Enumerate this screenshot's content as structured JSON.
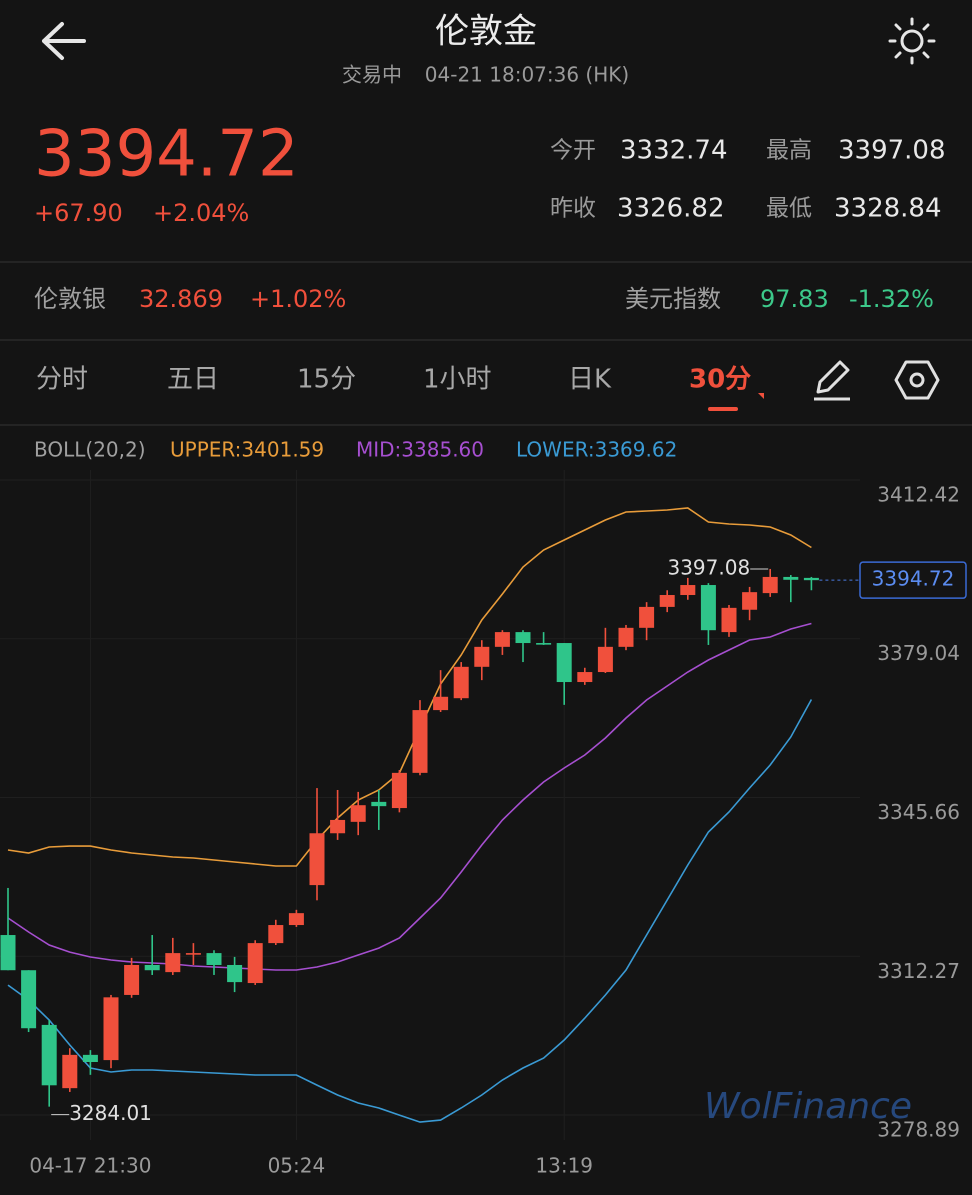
{
  "header": {
    "title": "伦敦金",
    "status": "交易中",
    "time": "04-21 18:07:36 (HK)"
  },
  "quote": {
    "price": "3394.72",
    "change": "+67.90",
    "change_pct": "+2.04%",
    "stats": [
      {
        "label": "今开",
        "value": "3332.74"
      },
      {
        "label": "最高",
        "value": "3397.08"
      },
      {
        "label": "昨收",
        "value": "3326.82"
      },
      {
        "label": "最低",
        "value": "3328.84"
      }
    ]
  },
  "related": [
    {
      "name": "伦敦银",
      "price": "32.869",
      "change": "+1.02%"
    },
    {
      "name": "美元指数",
      "price": "97.83",
      "change": "-1.32%"
    }
  ],
  "tabs": [
    "分时",
    "五日",
    "15分",
    "1小时",
    "日K",
    "30分"
  ],
  "active_tab": 5,
  "watermark": "WolFinance",
  "chart_data": {
    "type": "candlestick",
    "indicator": "BOLL(20,2)",
    "up_color": "#f0503c",
    "down_color": "#2fc58a",
    "categories": [
      null,
      null,
      null,
      null,
      "04-17 21:30",
      null,
      null,
      null,
      null,
      null,
      null,
      null,
      null,
      null,
      "05:24",
      null,
      null,
      null,
      null,
      null,
      null,
      null,
      null,
      null,
      null,
      null,
      null,
      "13:19",
      null,
      null,
      null,
      null,
      null,
      null,
      null,
      null,
      null,
      null,
      null,
      null
    ],
    "open": [
      3320.1,
      3312.7,
      3301.2,
      3287.9,
      3294.9,
      3293.8,
      3307.5,
      3313.8,
      3312.3,
      3316.0,
      3316.3,
      3313.8,
      3310.0,
      3318.4,
      3322.2,
      3330.6,
      3341.5,
      3343.9,
      3348.1,
      3346.8,
      3354.2,
      3367.4,
      3369.9,
      3376.5,
      3380.7,
      3383.8,
      3381.5,
      3381.5,
      3373.3,
      3375.4,
      3380.7,
      3384.7,
      3389.1,
      3391.6,
      3393.7,
      3383.8,
      3388.5,
      3392.0,
      3395.4,
      3395.2
    ],
    "high": [
      3330.0,
      3312.7,
      3302.2,
      3296.3,
      3295.9,
      3307.5,
      3315.3,
      3320.1,
      3319.5,
      3318.4,
      3316.9,
      3315.5,
      3319.0,
      3323.3,
      3325.4,
      3351.0,
      3350.6,
      3350.2,
      3350.6,
      3354.8,
      3369.5,
      3375.8,
      3377.5,
      3382.1,
      3384.2,
      3384.2,
      3383.8,
      3381.5,
      3376.3,
      3384.7,
      3385.3,
      3390.1,
      3392.6,
      3395.2,
      3394.1,
      3389.5,
      3393.3,
      3397.08,
      3395.8,
      3395.4
    ],
    "low": [
      3312.7,
      3299.7,
      3284.01,
      3287.1,
      3290.7,
      3292.1,
      3306.9,
      3311.7,
      3311.7,
      3313.8,
      3311.7,
      3308.1,
      3309.6,
      3318.0,
      3321.8,
      3327.4,
      3340.1,
      3341.1,
      3342.2,
      3345.9,
      3353.7,
      3367.0,
      3369.5,
      3373.7,
      3379.0,
      3377.5,
      3381.1,
      3368.5,
      3372.7,
      3375.2,
      3380.0,
      3382.1,
      3388.0,
      3390.6,
      3381.1,
      3382.8,
      3386.3,
      3391.2,
      3390.1,
      3392.6
    ],
    "close": [
      3312.7,
      3300.5,
      3288.5,
      3294.9,
      3293.4,
      3307.0,
      3313.8,
      3312.7,
      3316.3,
      3316.3,
      3313.8,
      3310.2,
      3318.4,
      3322.2,
      3324.7,
      3341.5,
      3344.3,
      3347.4,
      3347.2,
      3354.2,
      3367.4,
      3370.2,
      3376.5,
      3380.7,
      3383.8,
      3381.5,
      3381.3,
      3373.3,
      3375.4,
      3380.7,
      3384.7,
      3389.1,
      3391.6,
      3393.7,
      3384.2,
      3388.9,
      3392.2,
      3395.4,
      3394.8,
      3394.72
    ],
    "series": [
      {
        "name": "UPPER:3401.59",
        "color": "#e89c3a",
        "values": [
          3337.97,
          3337.34,
          3338.6,
          3338.81,
          3338.81,
          3337.97,
          3337.34,
          3336.92,
          3336.5,
          3336.29,
          3335.87,
          3335.45,
          3335.03,
          3334.61,
          3334.61,
          3340.08,
          3344.7,
          3348.49,
          3350.59,
          3354.17,
          3363.63,
          3372.88,
          3378.98,
          3386.34,
          3391.81,
          3397.49,
          3401.06,
          3403.17,
          3405.27,
          3407.37,
          3409.06,
          3409.27,
          3409.48,
          3409.9,
          3406.95,
          3406.53,
          3406.32,
          3405.9,
          3404.22,
          3401.59
        ]
      },
      {
        "name": "MID:3385.60",
        "color": "#a64fd0",
        "values": [
          3323.67,
          3320.73,
          3318.0,
          3316.52,
          3315.47,
          3314.84,
          3314.42,
          3314.21,
          3314.0,
          3313.58,
          3313.37,
          3313.16,
          3312.95,
          3312.74,
          3312.74,
          3313.37,
          3314.42,
          3315.89,
          3317.36,
          3319.47,
          3323.67,
          3327.88,
          3333.35,
          3339.03,
          3344.28,
          3348.49,
          3352.27,
          3355.22,
          3357.95,
          3361.53,
          3365.73,
          3369.52,
          3372.46,
          3375.41,
          3377.93,
          3380.03,
          3382.14,
          3382.77,
          3384.45,
          3385.6
        ]
      },
      {
        "name": "LOWER:3369.62",
        "color": "#3a9ad4",
        "values": [
          3309.58,
          3306.43,
          3302.22,
          3296.97,
          3292.13,
          3291.29,
          3291.71,
          3291.71,
          3291.5,
          3291.29,
          3291.08,
          3290.87,
          3290.66,
          3290.66,
          3290.66,
          3288.55,
          3286.45,
          3284.77,
          3283.72,
          3282.24,
          3280.77,
          3281.19,
          3283.72,
          3286.45,
          3289.61,
          3292.13,
          3294.23,
          3298.02,
          3302.64,
          3307.48,
          3312.74,
          3320.1,
          3327.46,
          3334.82,
          3341.76,
          3345.97,
          3351.01,
          3355.85,
          3361.74,
          3369.62
        ]
      }
    ],
    "ylim": [
      3278.89,
      3412.42
    ],
    "yticks": [
      3412.42,
      3379.04,
      3345.66,
      3312.27,
      3278.89
    ],
    "grid": true
  }
}
